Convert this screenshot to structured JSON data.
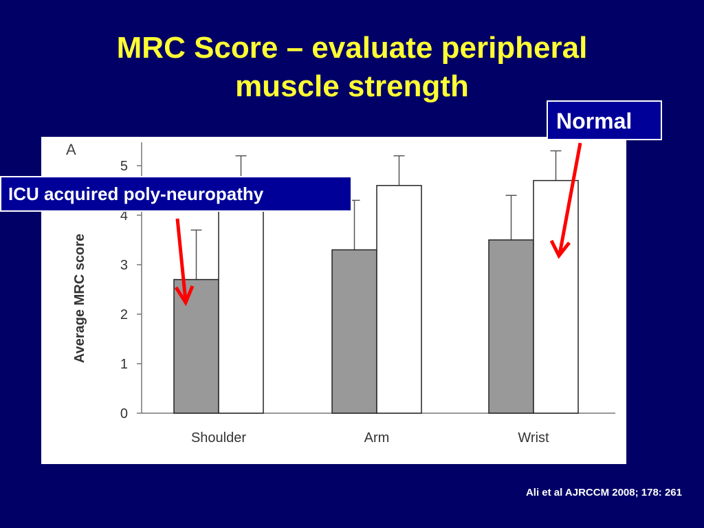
{
  "slide": {
    "title_line1": "MRC Score – evaluate peripheral",
    "title_line2": "muscle strength",
    "callout_icu": "ICU acquired poly-neuropathy",
    "callout_normal": "Normal",
    "citation": "Ali et al AJRCCM 2008; 178: 261",
    "colors": {
      "background": "#000066",
      "title": "#ffff33",
      "callout_bg": "#000099",
      "arrow": "#ff0000"
    }
  },
  "chart_data": {
    "type": "bar",
    "panel_label": "A",
    "ylabel": "Average MRC score",
    "xlabel": "",
    "ylim": [
      0,
      5.5
    ],
    "yticks": [
      0,
      1,
      2,
      3,
      4,
      5
    ],
    "categories": [
      "Shoulder",
      "Arm",
      "Wrist"
    ],
    "series": [
      {
        "fill": "#999999",
        "values": [
          2.7,
          3.3,
          3.5
        ],
        "error_upper": [
          3.7,
          4.3,
          4.4
        ]
      },
      {
        "fill": "#ffffff",
        "values": [
          4.3,
          4.6,
          4.7
        ],
        "error_upper": [
          5.2,
          5.2,
          5.3
        ]
      }
    ],
    "grid": false
  }
}
